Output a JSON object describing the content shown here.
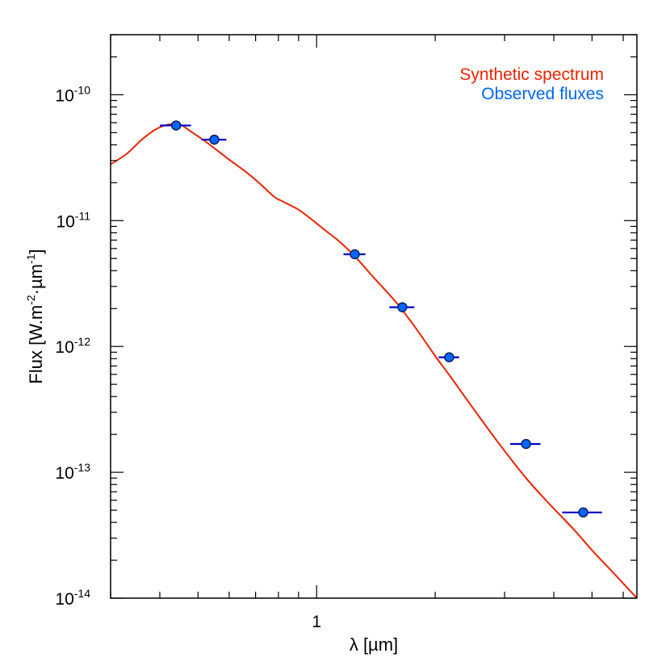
{
  "chart_data": {
    "type": "line",
    "xlabel": "λ [µm]",
    "ylabel": "Flux [W.m⁻²·µm⁻¹]",
    "xscale": "log",
    "yscale": "log",
    "xlim": [
      0.3,
      6.5
    ],
    "ylim": [
      1e-14,
      3e-10
    ],
    "grid": false,
    "legend": "top-right",
    "x_tick_labels": [
      {
        "value": 1,
        "label": "1"
      }
    ],
    "y_tick_labels": [
      {
        "value": 1e-14,
        "base": "10",
        "exp": "-14"
      },
      {
        "value": 1e-13,
        "base": "10",
        "exp": "-13"
      },
      {
        "value": 1e-12,
        "base": "10",
        "exp": "-12"
      },
      {
        "value": 1e-11,
        "base": "10",
        "exp": "-11"
      },
      {
        "value": 1e-10,
        "base": "10",
        "exp": "-10"
      }
    ],
    "series": [
      {
        "name": "Synthetic spectrum",
        "color": "#ee2200",
        "style": "line",
        "x": [
          0.3,
          0.33,
          0.36,
          0.39,
          0.42,
          0.45,
          0.48,
          0.52,
          0.56,
          0.6,
          0.66,
          0.72,
          0.78,
          0.82,
          0.9,
          0.98,
          1.05,
          1.15,
          1.25,
          1.4,
          1.6,
          1.8,
          2.0,
          2.2,
          2.5,
          2.9,
          3.4,
          3.9,
          4.5,
          5.0,
          5.6,
          6.5
        ],
        "y": [
          2.8e-11,
          3.4e-11,
          4.4e-11,
          5.3e-11,
          5.8e-11,
          5.8e-11,
          5.1e-11,
          4.3e-11,
          3.6e-11,
          3.05e-11,
          2.45e-11,
          1.95e-11,
          1.55e-11,
          1.42e-11,
          1.22e-11,
          1e-11,
          8.4e-12,
          6.7e-12,
          5.2e-12,
          3.5e-12,
          2.2e-12,
          1.35e-12,
          8.4e-13,
          5.6e-13,
          3.2e-13,
          1.7e-13,
          9e-14,
          5.6e-14,
          3.5e-14,
          2.4e-14,
          1.65e-14,
          1e-14
        ]
      },
      {
        "name": "Observed fluxes",
        "color": "#0066ff",
        "style": "points",
        "errorbar_color": "#0000cc",
        "x": [
          0.44,
          0.55,
          1.25,
          1.65,
          2.17,
          3.4,
          4.75
        ],
        "y": [
          5.7e-11,
          4.4e-11,
          5.4e-12,
          2.05e-12,
          8.2e-13,
          1.68e-13,
          4.8e-14
        ],
        "xerr_low": [
          0.04,
          0.04,
          0.08,
          0.12,
          0.13,
          0.3,
          0.55
        ],
        "xerr_high": [
          0.04,
          0.04,
          0.08,
          0.12,
          0.13,
          0.3,
          0.55
        ]
      }
    ]
  }
}
